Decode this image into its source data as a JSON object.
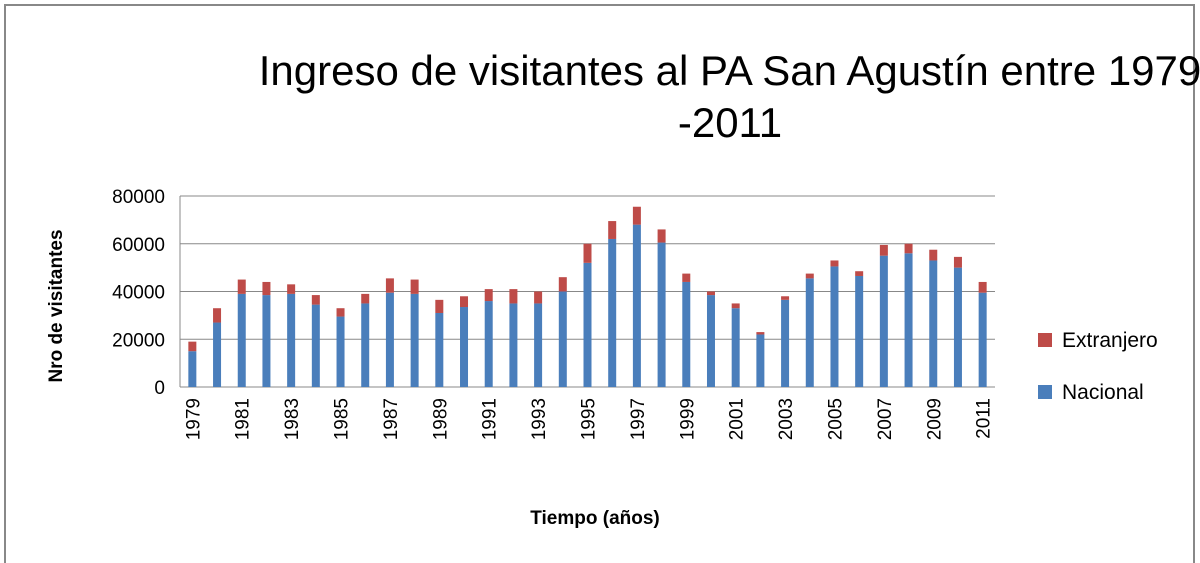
{
  "chart_data": {
    "type": "stacked_bar",
    "title": "Ingreso de visitantes al PA San Agustín entre 1979 -2011",
    "x_label": "Tiempo (años)",
    "y_label": "Nro de visitantes",
    "categories": [
      "1979",
      null,
      "1981",
      null,
      "1983",
      null,
      "1985",
      null,
      "1987",
      null,
      "1989",
      null,
      "1991",
      null,
      "1993",
      null,
      "1995",
      null,
      "1997",
      null,
      "1999",
      null,
      "2001",
      null,
      "2003",
      null,
      "2005",
      null,
      "2007",
      null,
      "2009",
      null,
      "2011"
    ],
    "series": [
      {
        "name": "Nacional",
        "color": "#4a7ebb",
        "values": [
          15000,
          27000,
          39000,
          38500,
          39000,
          34500,
          29500,
          35000,
          39500,
          39000,
          31000,
          33500,
          36000,
          35000,
          35000,
          40000,
          52000,
          62000,
          68000,
          60500,
          44000,
          38500,
          33000,
          22000,
          36500,
          45500,
          50500,
          46500,
          55000,
          56000,
          53000,
          50000,
          39500
        ]
      },
      {
        "name": "Extranjero",
        "color": "#be4b48",
        "values": [
          4000,
          6000,
          6000,
          5500,
          4000,
          4000,
          3500,
          4000,
          6000,
          6000,
          5500,
          4500,
          5000,
          6000,
          5000,
          6000,
          8000,
          7500,
          7500,
          5500,
          3500,
          1500,
          2000,
          1000,
          1500,
          2000,
          2500,
          2000,
          4500,
          4000,
          4500,
          4500,
          4500
        ]
      }
    ],
    "ylim": [
      0,
      80000
    ],
    "yticks": [
      0,
      20000,
      40000,
      60000,
      80000
    ],
    "grid": true,
    "legend": "right"
  }
}
